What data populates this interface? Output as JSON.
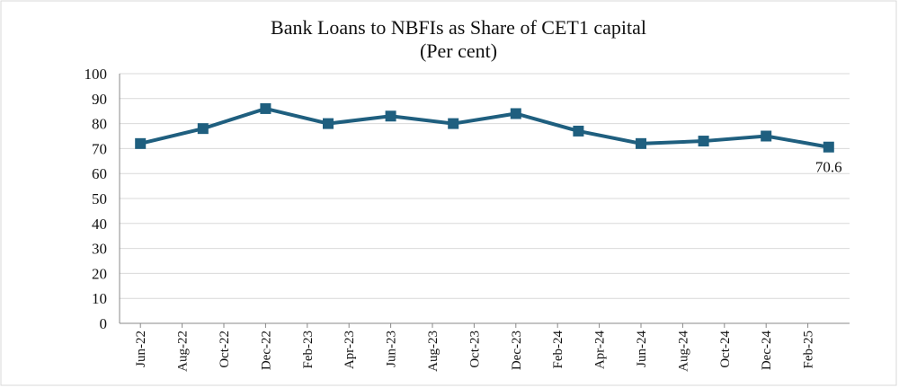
{
  "chart_data": {
    "type": "line",
    "title": "Bank Loans to NBFIs as Share of CET1 capital",
    "subtitle": "(Per cent)",
    "x": [
      0,
      3,
      6,
      9,
      12,
      15,
      18,
      21,
      24,
      27,
      30,
      33
    ],
    "xlim": [
      -1,
      34
    ],
    "xticks": [
      {
        "value": 0,
        "label": "Jun-22"
      },
      {
        "value": 2,
        "label": "Aug-22"
      },
      {
        "value": 4,
        "label": "Oct-22"
      },
      {
        "value": 6,
        "label": "Dec-22"
      },
      {
        "value": 8,
        "label": "Feb-23"
      },
      {
        "value": 10,
        "label": "Apr-23"
      },
      {
        "value": 12,
        "label": "Jun-23"
      },
      {
        "value": 14,
        "label": "Aug-23"
      },
      {
        "value": 16,
        "label": "Oct-23"
      },
      {
        "value": 18,
        "label": "Dec-23"
      },
      {
        "value": 20,
        "label": "Feb-24"
      },
      {
        "value": 22,
        "label": "Apr-24"
      },
      {
        "value": 24,
        "label": "Jun-24"
      },
      {
        "value": 26,
        "label": "Aug-24"
      },
      {
        "value": 28,
        "label": "Oct-24"
      },
      {
        "value": 30,
        "label": "Dec-24"
      },
      {
        "value": 32,
        "label": "Feb-25"
      }
    ],
    "series": [
      {
        "color": "#1f5f7f",
        "values": [
          72,
          78,
          86,
          80,
          83,
          80,
          84,
          77,
          72,
          73,
          75,
          70.6
        ]
      }
    ],
    "ylim": [
      0,
      100
    ],
    "yticks": [
      0,
      10,
      20,
      30,
      40,
      50,
      60,
      70,
      80,
      90,
      100
    ],
    "grid": true
  }
}
